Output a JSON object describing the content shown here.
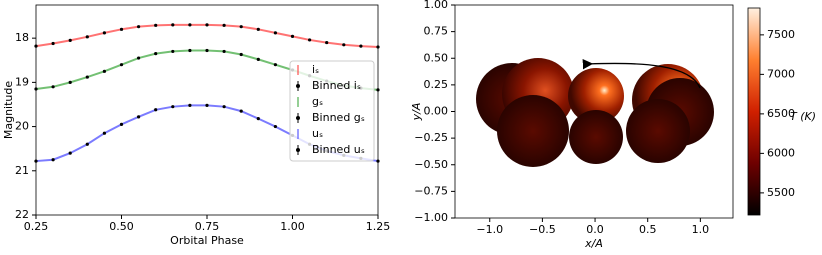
{
  "chart_data": [
    {
      "type": "line",
      "xlabel": "Orbital Phase",
      "ylabel": "Magnitude",
      "xlim": [
        0.25,
        1.25
      ],
      "ylim": [
        22,
        17.25
      ],
      "xticks": [
        {
          "value": 0.25,
          "label": "0.25"
        },
        {
          "value": 0.5,
          "label": "0.50"
        },
        {
          "value": 0.75,
          "label": "0.75"
        },
        {
          "value": 1.0,
          "label": "1.00"
        },
        {
          "value": 1.25,
          "label": "1.25"
        }
      ],
      "yticks": [
        18,
        19,
        20,
        21,
        22
      ],
      "legend": "right",
      "x": [
        0.25,
        0.3,
        0.35,
        0.4,
        0.45,
        0.5,
        0.55,
        0.6,
        0.65,
        0.7,
        0.75,
        0.8,
        0.85,
        0.9,
        0.95,
        1.0,
        1.05,
        1.1,
        1.15,
        1.2,
        1.25
      ],
      "series": [
        {
          "name": "iₛ",
          "color": "#ff5050",
          "style": "line",
          "values": [
            18.18,
            18.12,
            18.05,
            17.97,
            17.88,
            17.8,
            17.74,
            17.71,
            17.7,
            17.7,
            17.7,
            17.71,
            17.74,
            17.8,
            17.88,
            17.96,
            18.04,
            18.1,
            18.15,
            18.18,
            18.2
          ]
        },
        {
          "name": "Binned iₛ",
          "color": "#000000",
          "style": "points",
          "values": [
            18.18,
            18.12,
            18.05,
            17.97,
            17.88,
            17.8,
            17.74,
            17.71,
            17.7,
            17.7,
            17.7,
            17.71,
            17.74,
            17.8,
            17.88,
            17.96,
            18.04,
            18.1,
            18.15,
            18.18,
            18.2
          ]
        },
        {
          "name": "gₛ",
          "color": "#50b050",
          "style": "line",
          "values": [
            19.15,
            19.1,
            19.0,
            18.88,
            18.75,
            18.6,
            18.45,
            18.35,
            18.3,
            18.28,
            18.28,
            18.3,
            18.37,
            18.48,
            18.6,
            18.72,
            18.85,
            18.97,
            19.07,
            19.13,
            19.17
          ]
        },
        {
          "name": "Binned gₛ",
          "color": "#000000",
          "style": "points",
          "values": [
            19.15,
            19.1,
            19.0,
            18.88,
            18.75,
            18.6,
            18.45,
            18.35,
            18.3,
            18.28,
            18.28,
            18.3,
            18.37,
            18.48,
            18.6,
            18.72,
            18.85,
            18.97,
            19.07,
            19.13,
            19.17
          ]
        },
        {
          "name": "uₛ",
          "color": "#5a5aff",
          "style": "line",
          "values": [
            20.78,
            20.75,
            20.6,
            20.4,
            20.15,
            19.95,
            19.78,
            19.62,
            19.55,
            19.52,
            19.52,
            19.55,
            19.65,
            19.82,
            20.0,
            20.2,
            20.4,
            20.55,
            20.65,
            20.72,
            20.78
          ]
        },
        {
          "name": "Binned uₛ",
          "color": "#000000",
          "style": "points",
          "values": [
            20.78,
            20.75,
            20.6,
            20.4,
            20.15,
            19.95,
            19.78,
            19.62,
            19.55,
            19.52,
            19.52,
            19.55,
            19.65,
            19.82,
            20.0,
            20.2,
            20.4,
            20.55,
            20.65,
            20.72,
            20.78
          ]
        }
      ]
    },
    {
      "type": "image",
      "xlabel": "x/A",
      "ylabel": "y/A",
      "xlim": [
        -1.33,
        1.31
      ],
      "ylim": [
        -1,
        1
      ],
      "xticks": [
        {
          "value": -1,
          "label": "−1.0"
        },
        {
          "value": -0.5,
          "label": "−0.5"
        },
        {
          "value": 0,
          "label": "0.0"
        },
        {
          "value": 0.5,
          "label": "0.5"
        },
        {
          "value": 1,
          "label": "1.0"
        }
      ],
      "yticks": [
        {
          "value": -1,
          "label": "−1.00"
        },
        {
          "value": -0.75,
          "label": "−0.75"
        },
        {
          "value": -0.5,
          "label": "−0.50"
        },
        {
          "value": -0.25,
          "label": "−0.25"
        },
        {
          "value": 0,
          "label": "0.00"
        },
        {
          "value": 0.25,
          "label": "0.25"
        },
        {
          "value": 0.5,
          "label": "0.50"
        },
        {
          "value": 0.75,
          "label": "0.75"
        },
        {
          "value": 1,
          "label": "1.00"
        }
      ],
      "colorbar_label": "T (K)",
      "clim": [
        5220,
        7840
      ],
      "cticks": [
        5500,
        6000,
        6500,
        7000,
        7500
      ],
      "colormap": [
        "#000000",
        "#6e0000",
        "#d02000",
        "#ff8030",
        "#fff0e0"
      ]
    }
  ]
}
